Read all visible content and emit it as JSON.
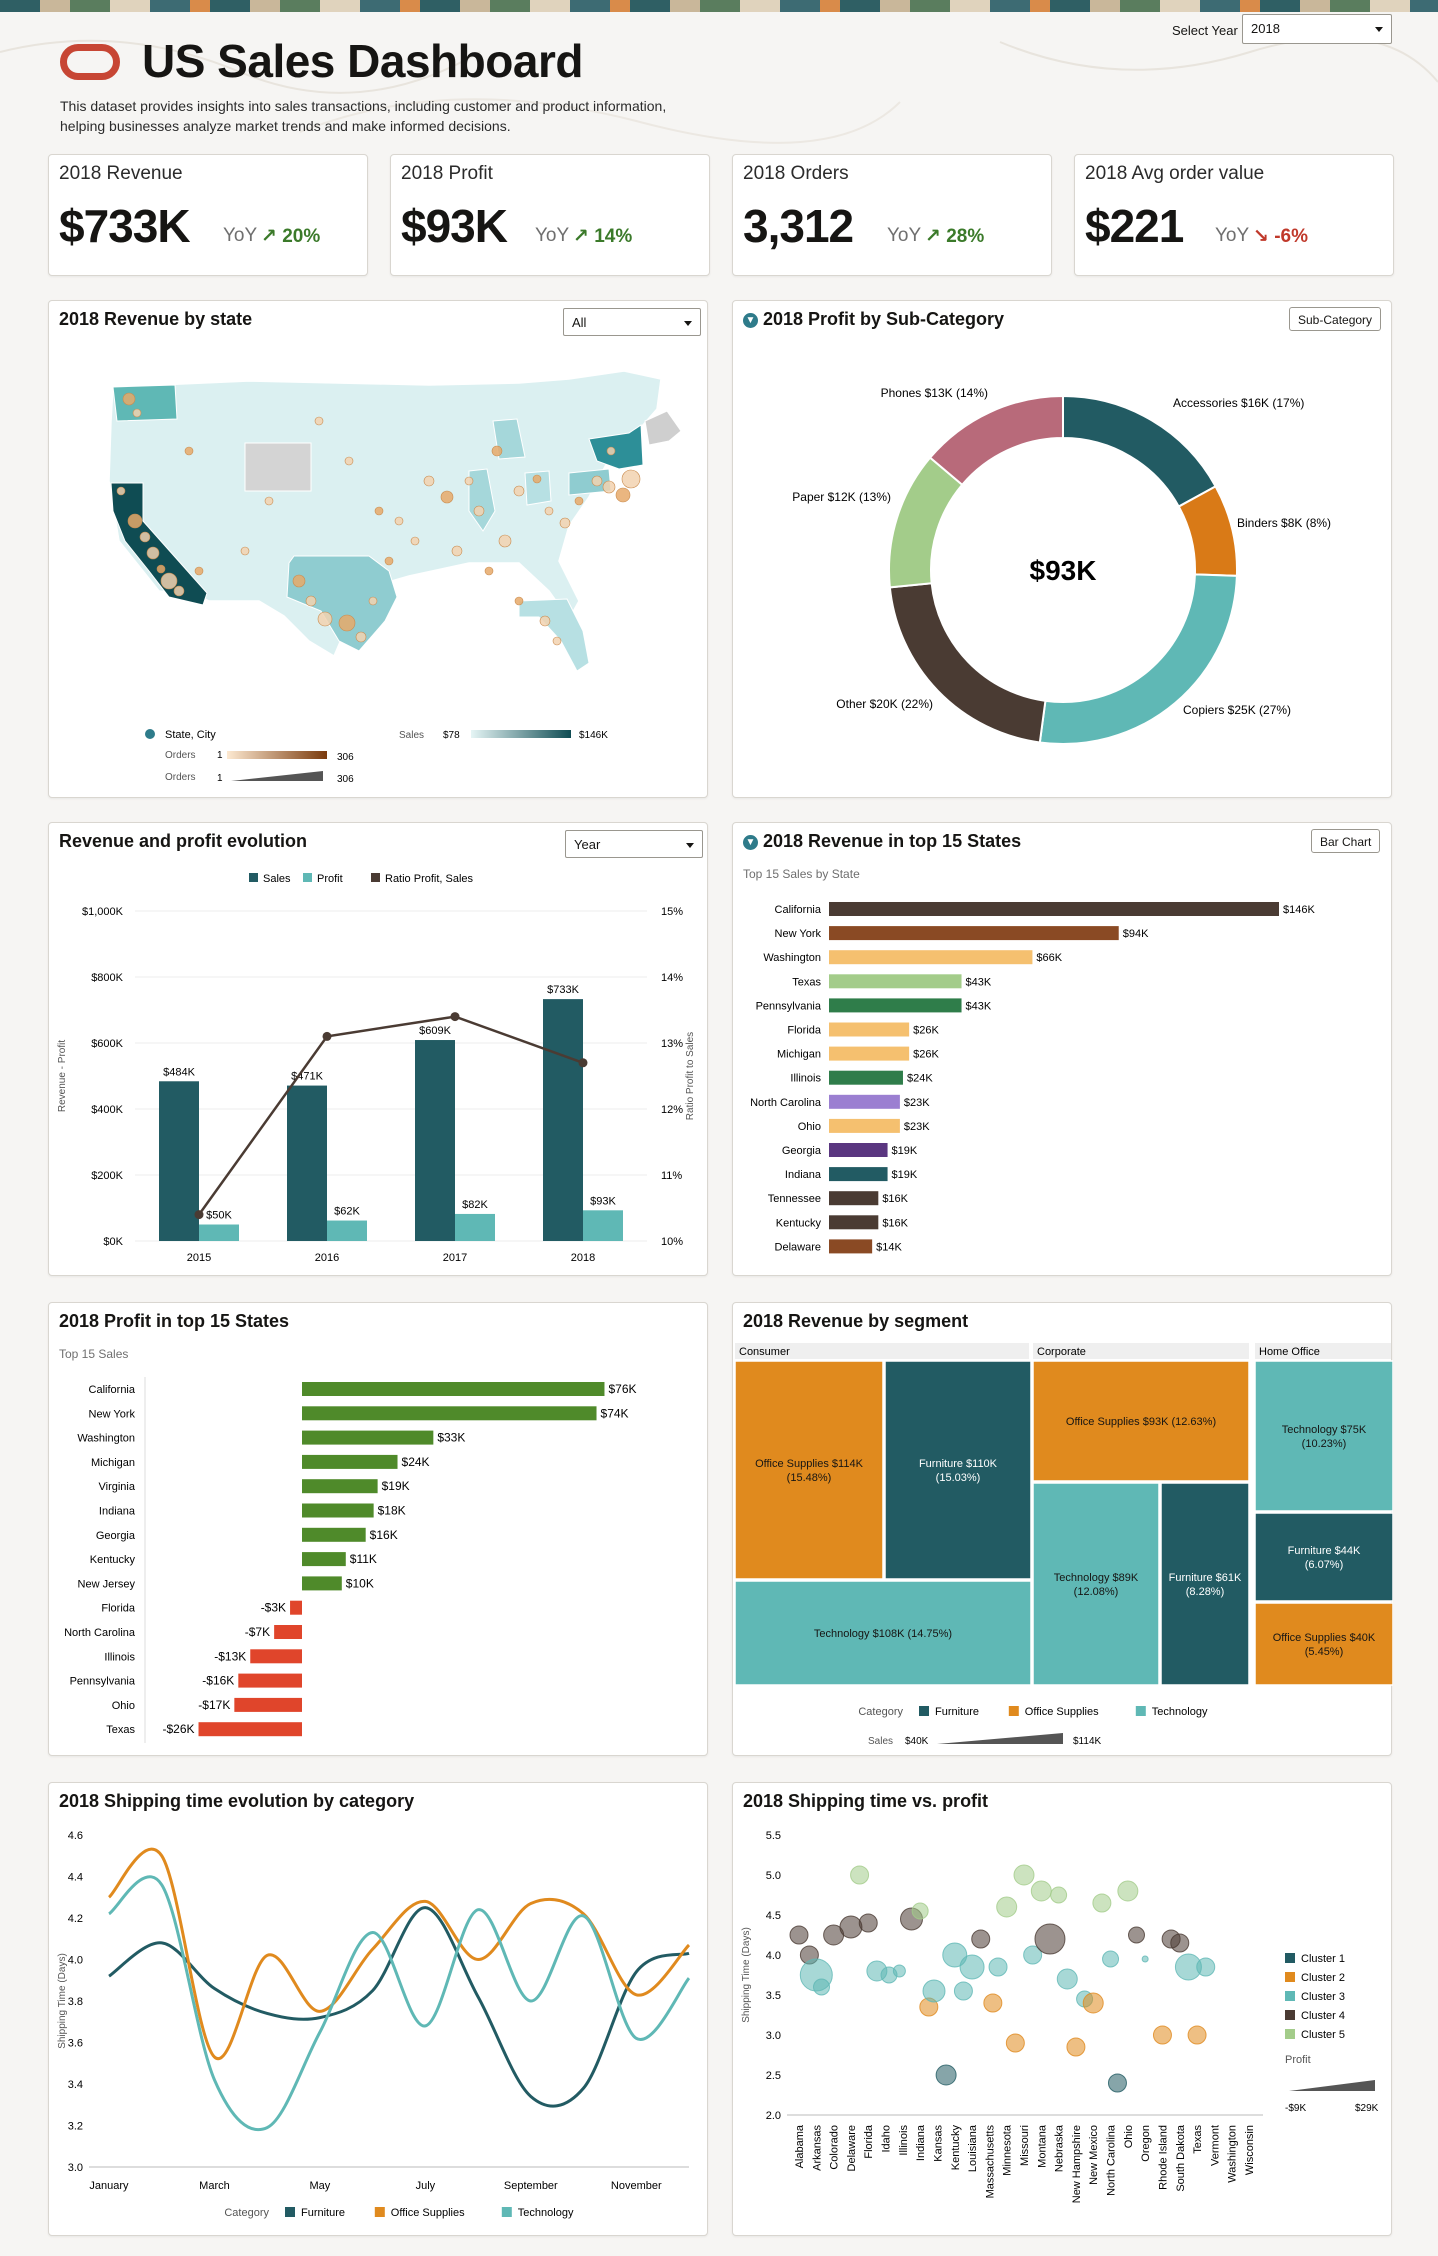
{
  "header": {
    "title": "US Sales Dashboard",
    "description_line1": "This dataset provides insights into sales transactions, including customer and product information,",
    "description_line2": "helping businesses analyze market trends and make informed decisions.",
    "select_year_label": "Select Year",
    "select_year_value": "2018"
  },
  "kpis": [
    {
      "label": "2018 Revenue",
      "value": "$733K",
      "yoy_label": "YoY",
      "delta": "20%",
      "direction": "up",
      "color": "#3b7a2a"
    },
    {
      "label": "2018 Profit",
      "value": "$93K",
      "yoy_label": "YoY",
      "delta": "14%",
      "direction": "up",
      "color": "#3b7a2a"
    },
    {
      "label": "2018 Orders",
      "value": "3,312",
      "yoy_label": "YoY",
      "delta": "28%",
      "direction": "up",
      "color": "#3b7a2a"
    },
    {
      "label": "2018 Avg order value",
      "value": "$221",
      "yoy_label": "YoY",
      "delta": "-6%",
      "direction": "down",
      "color": "#c0392b"
    }
  ],
  "map_card": {
    "title": "2018 Revenue by state",
    "filter_value": "All",
    "legend": {
      "state_city_label": "State, City",
      "orders_label": "Orders",
      "orders_min": "1",
      "orders_max": "306",
      "sales_label": "Sales",
      "sales_min": "$78",
      "sales_max": "$146K"
    }
  },
  "donut_card": {
    "title": "2018 Profit by Sub-Category",
    "button_label": "Sub-Category",
    "center_label": "$93K"
  },
  "evolution_card": {
    "title": "Revenue and profit evolution",
    "filter_value": "Year",
    "y_left_label": "Revenue - Profit",
    "y_right_label": "Ratio Profit to Sales"
  },
  "states_rev_card": {
    "title": "2018 Revenue in top 15 States",
    "subtitle": "Top 15 Sales by State",
    "button_label": "Bar Chart"
  },
  "states_profit_card": {
    "title": "2018 Profit in top 15 States",
    "subtitle": "Top 15 Sales"
  },
  "segment_card": {
    "title": "2018 Revenue by segment",
    "legend_category_label": "Category",
    "legend_sales_label": "Sales",
    "legend_sales_min": "$40K",
    "legend_sales_max": "$114K"
  },
  "shipping_line_card": {
    "title": "2018 Shipping time evolution by category",
    "y_label": "Shipping Time (Days)",
    "legend_label": "Category"
  },
  "shipping_scatter_card": {
    "title": "2018 Shipping time vs. profit",
    "y_label": "Shipping Time (Days)",
    "legend_profit_label": "Profit",
    "profit_min": "-$9K",
    "profit_max": "$29K"
  },
  "chart_data": [
    {
      "id": "donut",
      "type": "pie",
      "categories": [
        "Accessories",
        "Binders",
        "Copiers",
        "Other",
        "Paper",
        "Phones"
      ],
      "labels": [
        "Accessories $16K (17%)",
        "Binders $8K (8%)",
        "Copiers $25K (27%)",
        "Other $20K (22%)",
        "Paper $12K (13%)",
        "Phones $13K (14%)"
      ],
      "values": [
        16,
        8,
        25,
        20,
        12,
        13
      ],
      "colors": [
        "#225b63",
        "#d97a17",
        "#5fb8b5",
        "#4a3b33",
        "#a3cc8a",
        "#b86a7a"
      ]
    },
    {
      "id": "evolution",
      "type": "bar",
      "categories": [
        "2015",
        "2016",
        "2017",
        "2018"
      ],
      "series": [
        {
          "name": "Sales",
          "values": [
            484,
            471,
            609,
            733
          ],
          "labels": [
            "$484K",
            "$471K",
            "$609K",
            "$733K"
          ],
          "color": "#225b63"
        },
        {
          "name": "Profit",
          "values": [
            50,
            62,
            82,
            93
          ],
          "labels": [
            "$50K",
            "$62K",
            "$82K",
            "$93K"
          ],
          "color": "#5fb8b5"
        },
        {
          "name": "Ratio Profit, Sales",
          "values": [
            10.4,
            13.1,
            13.4,
            12.7
          ],
          "color": "#4a3b33"
        }
      ],
      "y_ticks": [
        "$0K",
        "$200K",
        "$400K",
        "$600K",
        "$800K",
        "$1,000K"
      ],
      "y2_ticks": [
        "10%",
        "11%",
        "12%",
        "13%",
        "14%",
        "15%"
      ],
      "ylim": [
        0,
        1000
      ],
      "y2lim": [
        10,
        15
      ]
    },
    {
      "id": "states_revenue",
      "type": "bar",
      "categories": [
        "California",
        "New York",
        "Washington",
        "Texas",
        "Pennsylvania",
        "Florida",
        "Michigan",
        "Illinois",
        "North Carolina",
        "Ohio",
        "Georgia",
        "Indiana",
        "Tennessee",
        "Kentucky",
        "Delaware"
      ],
      "values": [
        146,
        94,
        66,
        43,
        43,
        26,
        26,
        24,
        23,
        23,
        19,
        19,
        16,
        16,
        14
      ],
      "labels": [
        "$146K",
        "$94K",
        "$66K",
        "$43K",
        "$43K",
        "$26K",
        "$26K",
        "$24K",
        "$23K",
        "$23K",
        "$19K",
        "$19K",
        "$16K",
        "$16K",
        "$14K"
      ],
      "colors": [
        "#4a3b33",
        "#8a4a24",
        "#f5c06f",
        "#a3cc8a",
        "#2f7d4a",
        "#f5c06f",
        "#f5c06f",
        "#2f7d4a",
        "#9b7fd1",
        "#f5c06f",
        "#5a3680",
        "#225b63",
        "#4a3b33",
        "#4a3b33",
        "#8a4a24"
      ]
    },
    {
      "id": "states_profit",
      "type": "bar",
      "categories": [
        "California",
        "New York",
        "Washington",
        "Michigan",
        "Virginia",
        "Indiana",
        "Georgia",
        "Kentucky",
        "New Jersey",
        "Florida",
        "North Carolina",
        "Illinois",
        "Pennsylvania",
        "Ohio",
        "Texas"
      ],
      "values": [
        76,
        74,
        33,
        24,
        19,
        18,
        16,
        11,
        10,
        -3,
        -7,
        -13,
        -16,
        -17,
        -26
      ],
      "labels": [
        "$76K",
        "$74K",
        "$33K",
        "$24K",
        "$19K",
        "$18K",
        "$16K",
        "$11K",
        "$10K",
        "-$3K",
        "-$7K",
        "-$13K",
        "-$16K",
        "-$17K",
        "-$26K"
      ],
      "positive_color": "#4f8a2a",
      "negative_color": "#e0452b"
    },
    {
      "id": "segment_treemap",
      "type": "heatmap",
      "segments": [
        {
          "name": "Consumer",
          "cells": [
            {
              "label": "Office Supplies $114K (15.48%)",
              "category": "Office Supplies",
              "value": 114
            },
            {
              "label": "Furniture $110K (15.03%)",
              "category": "Furniture",
              "value": 110
            },
            {
              "label": "Technology $108K (14.75%)",
              "category": "Technology",
              "value": 108
            }
          ]
        },
        {
          "name": "Corporate",
          "cells": [
            {
              "label": "Office Supplies $93K (12.63%)",
              "category": "Office Supplies",
              "value": 93
            },
            {
              "label": "Technology $89K (12.08%)",
              "category": "Technology",
              "value": 89
            },
            {
              "label": "Furniture $61K (8.28%)",
              "category": "Furniture",
              "value": 61
            }
          ]
        },
        {
          "name": "Home Office",
          "cells": [
            {
              "label": "Technology $75K (10.23%)",
              "category": "Technology",
              "value": 75
            },
            {
              "label": "Furniture $44K (6.07%)",
              "category": "Furniture",
              "value": 44
            },
            {
              "label": "Office Supplies $40K (5.45%)",
              "category": "Office Supplies",
              "value": 40
            }
          ]
        }
      ],
      "legend": [
        {
          "name": "Furniture",
          "color": "#225b63"
        },
        {
          "name": "Office Supplies",
          "color": "#e08a1e"
        },
        {
          "name": "Technology",
          "color": "#5fb8b5"
        }
      ]
    },
    {
      "id": "shipping_line",
      "type": "line",
      "x": [
        "January",
        "February",
        "March",
        "April",
        "May",
        "June",
        "July",
        "August",
        "September",
        "October",
        "November",
        "December"
      ],
      "x_tick_labels": [
        "January",
        "March",
        "May",
        "July",
        "September",
        "November"
      ],
      "y_ticks": [
        "3.0",
        "3.2",
        "3.4",
        "3.6",
        "3.8",
        "4.0",
        "4.2",
        "4.4",
        "4.6"
      ],
      "ylim": [
        3.0,
        4.6
      ],
      "series": [
        {
          "name": "Furniture",
          "color": "#225b63",
          "values": [
            3.92,
            4.08,
            3.86,
            3.74,
            3.72,
            3.85,
            4.25,
            3.82,
            3.34,
            3.38,
            3.94,
            4.03
          ]
        },
        {
          "name": "Office Supplies",
          "color": "#e08a1e",
          "values": [
            4.3,
            4.5,
            3.53,
            4.02,
            3.75,
            4.05,
            4.28,
            4.0,
            4.27,
            4.22,
            3.83,
            4.07
          ]
        },
        {
          "name": "Technology",
          "color": "#5fb8b5",
          "values": [
            4.22,
            4.36,
            3.42,
            3.19,
            3.65,
            4.13,
            3.68,
            4.24,
            3.8,
            4.21,
            3.62,
            3.91
          ]
        }
      ]
    },
    {
      "id": "shipping_scatter",
      "type": "scatter",
      "states": [
        "Alabama",
        "Arkansas",
        "Colorado",
        "Delaware",
        "Florida",
        "Idaho",
        "Illinois",
        "Indiana",
        "Kansas",
        "Kentucky",
        "Louisiana",
        "Massachusetts",
        "Minnesota",
        "Missouri",
        "Montana",
        "Nebraska",
        "New Hampshire",
        "New Mexico",
        "North Carolina",
        "Ohio",
        "Oregon",
        "Rhode Island",
        "South Dakota",
        "Texas",
        "Vermont",
        "Washington",
        "Wisconsin"
      ],
      "y_ticks": [
        "2.0",
        "2.5",
        "3.0",
        "3.5",
        "4.0",
        "4.5",
        "5.0",
        "5.5"
      ],
      "ylim": [
        2.0,
        5.5
      ],
      "clusters": [
        {
          "name": "Cluster 1",
          "color": "#225b63"
        },
        {
          "name": "Cluster 2",
          "color": "#e08a1e"
        },
        {
          "name": "Cluster 3",
          "color": "#5fb8b5"
        },
        {
          "name": "Cluster 4",
          "color": "#4a3b33"
        },
        {
          "name": "Cluster 5",
          "color": "#a3cc8a"
        }
      ],
      "points": [
        {
          "x": 0,
          "y": 4.25,
          "c": 3,
          "s": 9
        },
        {
          "x": 0.6,
          "y": 4.0,
          "c": 3,
          "s": 9
        },
        {
          "x": 1,
          "y": 3.75,
          "c": 2,
          "s": 16
        },
        {
          "x": 1.3,
          "y": 3.6,
          "c": 2,
          "s": 8
        },
        {
          "x": 2,
          "y": 4.25,
          "c": 3,
          "s": 10
        },
        {
          "x": 3,
          "y": 4.35,
          "c": 3,
          "s": 11
        },
        {
          "x": 3.5,
          "y": 5.0,
          "c": 4,
          "s": 9
        },
        {
          "x": 4,
          "y": 4.4,
          "c": 3,
          "s": 9
        },
        {
          "x": 4.5,
          "y": 3.8,
          "c": 2,
          "s": 10
        },
        {
          "x": 5.2,
          "y": 3.75,
          "c": 2,
          "s": 8
        },
        {
          "x": 5.8,
          "y": 3.8,
          "c": 2,
          "s": 6
        },
        {
          "x": 6.5,
          "y": 4.45,
          "c": 3,
          "s": 11
        },
        {
          "x": 7,
          "y": 4.55,
          "c": 4,
          "s": 8
        },
        {
          "x": 7.5,
          "y": 3.35,
          "c": 1,
          "s": 9
        },
        {
          "x": 7.8,
          "y": 3.55,
          "c": 2,
          "s": 11
        },
        {
          "x": 8.5,
          "y": 2.5,
          "c": 0,
          "s": 10
        },
        {
          "x": 9,
          "y": 4.0,
          "c": 2,
          "s": 12
        },
        {
          "x": 9.5,
          "y": 3.55,
          "c": 2,
          "s": 9
        },
        {
          "x": 10,
          "y": 3.85,
          "c": 2,
          "s": 12
        },
        {
          "x": 10.5,
          "y": 4.2,
          "c": 3,
          "s": 9
        },
        {
          "x": 11.2,
          "y": 3.4,
          "c": 1,
          "s": 9
        },
        {
          "x": 11.5,
          "y": 3.85,
          "c": 2,
          "s": 9
        },
        {
          "x": 12,
          "y": 4.6,
          "c": 4,
          "s": 10
        },
        {
          "x": 12.5,
          "y": 2.9,
          "c": 1,
          "s": 9
        },
        {
          "x": 13,
          "y": 5.0,
          "c": 4,
          "s": 10
        },
        {
          "x": 13.5,
          "y": 4.0,
          "c": 2,
          "s": 9
        },
        {
          "x": 14,
          "y": 4.8,
          "c": 4,
          "s": 10
        },
        {
          "x": 14.5,
          "y": 4.2,
          "c": 3,
          "s": 15
        },
        {
          "x": 15,
          "y": 4.75,
          "c": 4,
          "s": 8
        },
        {
          "x": 15.5,
          "y": 3.7,
          "c": 2,
          "s": 10
        },
        {
          "x": 16,
          "y": 2.85,
          "c": 1,
          "s": 9
        },
        {
          "x": 16.5,
          "y": 3.45,
          "c": 2,
          "s": 8
        },
        {
          "x": 17,
          "y": 3.4,
          "c": 1,
          "s": 10
        },
        {
          "x": 17.5,
          "y": 4.65,
          "c": 4,
          "s": 9
        },
        {
          "x": 18,
          "y": 3.95,
          "c": 2,
          "s": 8
        },
        {
          "x": 18.4,
          "y": 2.4,
          "c": 0,
          "s": 9
        },
        {
          "x": 19,
          "y": 4.8,
          "c": 4,
          "s": 10
        },
        {
          "x": 19.5,
          "y": 4.25,
          "c": 3,
          "s": 8
        },
        {
          "x": 20,
          "y": 3.95,
          "c": 2,
          "s": 3
        },
        {
          "x": 21,
          "y": 3.0,
          "c": 1,
          "s": 9
        },
        {
          "x": 21.5,
          "y": 4.2,
          "c": 3,
          "s": 9
        },
        {
          "x": 22,
          "y": 4.15,
          "c": 3,
          "s": 9
        },
        {
          "x": 22.5,
          "y": 3.85,
          "c": 2,
          "s": 13
        },
        {
          "x": 23,
          "y": 3.0,
          "c": 1,
          "s": 9
        },
        {
          "x": 23.5,
          "y": 3.85,
          "c": 2,
          "s": 9
        }
      ]
    }
  ]
}
